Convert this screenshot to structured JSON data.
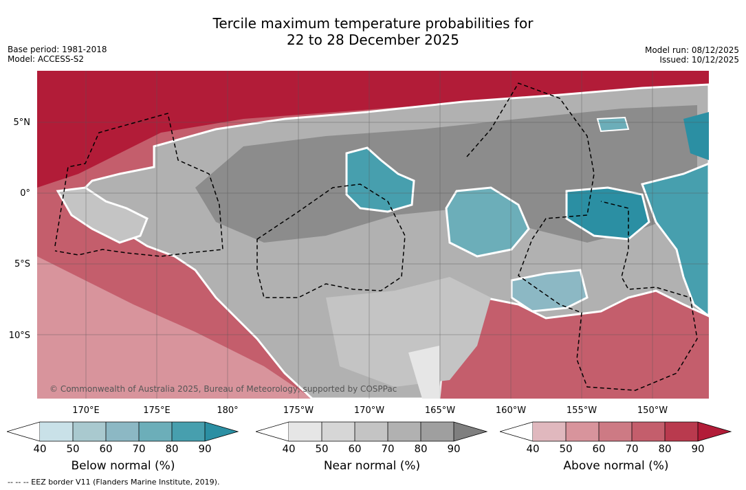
{
  "title": {
    "line1": "Tercile maximum temperature probabilities for",
    "line2": "22 to 28 December 2025"
  },
  "meta_left": {
    "base_period": "Base period: 1981-2018",
    "model": "Model: ACCESS-S2"
  },
  "meta_right": {
    "model_run": "Model run: 08/12/2025",
    "issued": "Issued: 10/12/2025"
  },
  "map": {
    "latitude_labels": [
      "5°N",
      "0°",
      "5°S",
      "10°S"
    ],
    "longitude_labels": [
      "170°E",
      "175°E",
      "180°",
      "175°W",
      "170°W",
      "165°W",
      "160°W",
      "155°W",
      "150°W"
    ],
    "credit": "© Commonwealth of Australia 2025, Bureau of Meteorology, supported by COSPPac"
  },
  "legend": {
    "below": {
      "title": "Below normal (%)",
      "ticks": [
        "40",
        "50",
        "60",
        "70",
        "80",
        "90"
      ],
      "colors": [
        "#c9e1e8",
        "#a9c9cf",
        "#8cb8c4",
        "#6caeb9",
        "#479fae",
        "#2b8fa3"
      ]
    },
    "near": {
      "title": "Near normal (%)",
      "ticks": [
        "40",
        "50",
        "60",
        "70",
        "80",
        "90"
      ],
      "colors": [
        "#e6e6e6",
        "#d6d6d6",
        "#c4c4c4",
        "#b1b1b1",
        "#9f9f9f",
        "#7f7f7f"
      ]
    },
    "above": {
      "title": "Above normal (%)",
      "ticks": [
        "40",
        "50",
        "60",
        "70",
        "80",
        "90"
      ],
      "colors": [
        "#e0b8be",
        "#d8949c",
        "#cd7a84",
        "#c45e6c",
        "#b93a4e",
        "#b21c38"
      ]
    }
  },
  "footnote": "--  --  -- EEZ border V11 (Flanders Marine Institute, 2019)."
}
